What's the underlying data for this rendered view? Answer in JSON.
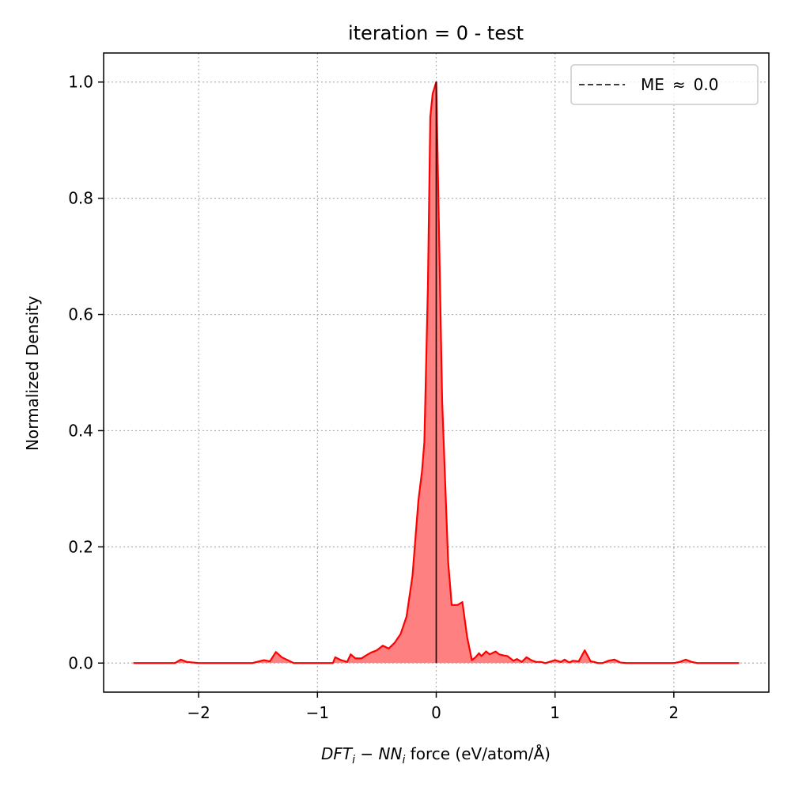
{
  "chart_data": {
    "type": "area",
    "title": "iteration = 0 - test",
    "xlabel_parts": {
      "dft": "DFT",
      "i1": "i",
      "minus": " − ",
      "nn": "NN",
      "i2": "i",
      "rest": " force (eV/atom/Å)"
    },
    "ylabel": "Normalized Density",
    "xlim": [
      -2.8,
      2.8
    ],
    "ylim": [
      -0.05,
      1.05
    ],
    "xticks": [
      -2,
      -1,
      0,
      1,
      2
    ],
    "xtick_labels": [
      "−2",
      "−1",
      "0",
      "1",
      "2"
    ],
    "yticks": [
      0.0,
      0.2,
      0.4,
      0.6,
      0.8,
      1.0
    ],
    "ytick_labels": [
      "0.0",
      "0.2",
      "0.4",
      "0.6",
      "0.8",
      "1.0"
    ],
    "grid": true,
    "legend_position": "top-right",
    "legend": {
      "label": "ME",
      "approx": "≈",
      "value": "0.0"
    },
    "mean_error_x": 0.0,
    "colors": {
      "line": "#ff0000",
      "fill": "#ff8080",
      "mean_line": "#000000",
      "grid": "#b0b0b0"
    },
    "series": [
      {
        "x": [
          -2.55,
          -2.2,
          -2.15,
          -2.1,
          -2.0,
          -1.55,
          -1.45,
          -1.4,
          -1.35,
          -1.3,
          -1.2,
          -1.0,
          -0.87,
          -0.85,
          -0.8,
          -0.75,
          -0.72,
          -0.68,
          -0.63,
          -0.6,
          -0.55,
          -0.5,
          -0.45,
          -0.4,
          -0.35,
          -0.3,
          -0.25,
          -0.2,
          -0.15,
          -0.12,
          -0.1,
          -0.07,
          -0.05,
          -0.03,
          0.0,
          0.02,
          0.05,
          0.1,
          0.13,
          0.18,
          0.22,
          0.26,
          0.3,
          0.33,
          0.36,
          0.38,
          0.42,
          0.45,
          0.5,
          0.53,
          0.57,
          0.6,
          0.65,
          0.68,
          0.72,
          0.76,
          0.8,
          0.84,
          0.88,
          0.92,
          1.0,
          1.05,
          1.08,
          1.12,
          1.15,
          1.2,
          1.25,
          1.3,
          1.33,
          1.36,
          1.4,
          1.45,
          1.5,
          1.55,
          1.6,
          2.0,
          2.05,
          2.1,
          2.15,
          2.2,
          2.55
        ],
        "y": [
          0.0,
          0.0,
          0.006,
          0.002,
          0.0,
          0.0,
          0.005,
          0.003,
          0.019,
          0.01,
          0.0,
          0.0,
          0.0,
          0.01,
          0.005,
          0.002,
          0.015,
          0.008,
          0.008,
          0.012,
          0.018,
          0.022,
          0.03,
          0.025,
          0.035,
          0.05,
          0.08,
          0.15,
          0.28,
          0.33,
          0.38,
          0.65,
          0.94,
          0.98,
          1.0,
          0.78,
          0.45,
          0.175,
          0.1,
          0.1,
          0.105,
          0.045,
          0.005,
          0.01,
          0.017,
          0.012,
          0.02,
          0.015,
          0.02,
          0.015,
          0.013,
          0.012,
          0.004,
          0.007,
          0.002,
          0.01,
          0.005,
          0.002,
          0.002,
          0.0,
          0.005,
          0.002,
          0.006,
          0.001,
          0.004,
          0.003,
          0.022,
          0.003,
          0.002,
          0.0,
          0.0,
          0.004,
          0.006,
          0.001,
          0.0,
          0.0,
          0.002,
          0.006,
          0.002,
          0.0,
          0.0
        ]
      }
    ]
  }
}
